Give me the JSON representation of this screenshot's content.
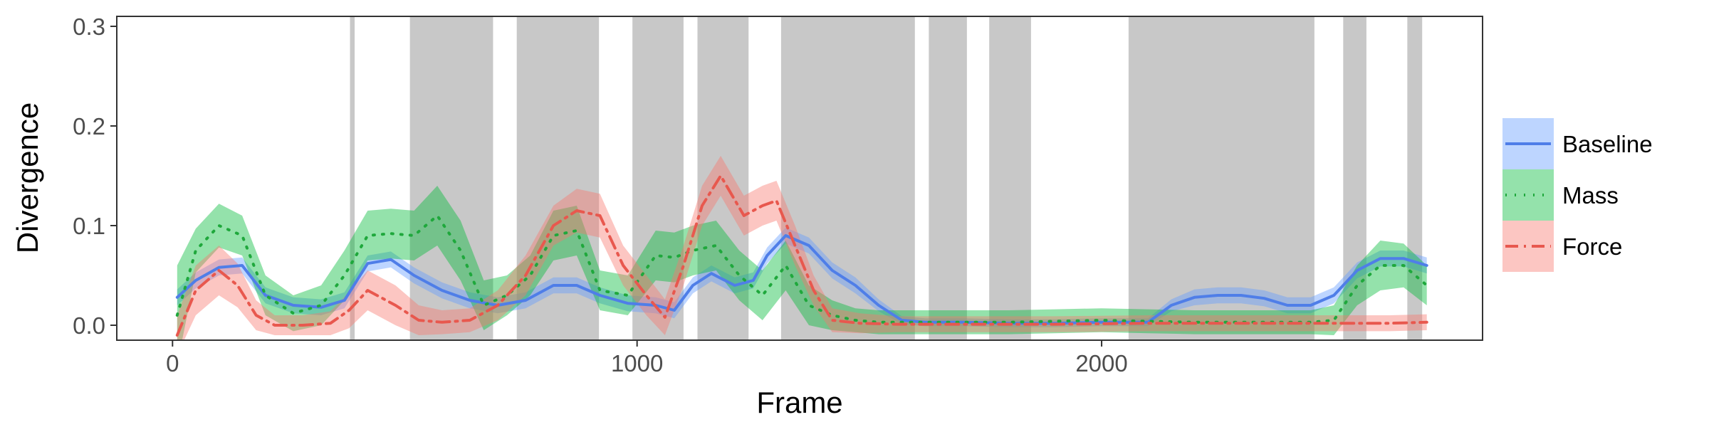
{
  "chart_data": {
    "type": "line",
    "xlabel": "Frame",
    "ylabel": "Divergence",
    "xlim": [
      -120,
      2820
    ],
    "ylim": [
      -0.015,
      0.31
    ],
    "x_ticks": [
      0,
      1000,
      2000
    ],
    "x_tick_labels": [
      "0",
      "1000",
      "2000"
    ],
    "y_ticks": [
      0.0,
      0.1,
      0.2,
      0.3
    ],
    "y_tick_labels": [
      "0.0",
      "0.1",
      "0.2",
      "0.3"
    ],
    "grid": false,
    "legend_position": "right",
    "shaded_intervals": [
      [
        382,
        392
      ],
      [
        511,
        690
      ],
      [
        741,
        918
      ],
      [
        990,
        1100
      ],
      [
        1130,
        1240
      ],
      [
        1310,
        1598
      ],
      [
        1628,
        1710
      ],
      [
        1758,
        1848
      ],
      [
        2058,
        2458
      ],
      [
        2520,
        2570
      ],
      [
        2658,
        2690
      ]
    ],
    "series": [
      {
        "name": "Baseline",
        "color": "#619CFF",
        "line_color": "#4f7ee8",
        "dash": "solid",
        "x": [
          10,
          50,
          100,
          150,
          200,
          260,
          320,
          370,
          420,
          470,
          520,
          580,
          640,
          700,
          760,
          820,
          870,
          920,
          980,
          1040,
          1080,
          1120,
          1160,
          1210,
          1250,
          1280,
          1320,
          1370,
          1420,
          1470,
          1520,
          1570,
          1620,
          1700,
          1800,
          1900,
          2000,
          2100,
          2150,
          2200,
          2250,
          2300,
          2350,
          2400,
          2450,
          2500,
          2550,
          2600,
          2650,
          2700
        ],
        "y": [
          0.028,
          0.045,
          0.058,
          0.06,
          0.03,
          0.02,
          0.018,
          0.025,
          0.062,
          0.066,
          0.05,
          0.035,
          0.025,
          0.02,
          0.025,
          0.04,
          0.04,
          0.03,
          0.022,
          0.02,
          0.015,
          0.04,
          0.052,
          0.04,
          0.045,
          0.07,
          0.09,
          0.08,
          0.055,
          0.04,
          0.02,
          0.005,
          0.003,
          0.003,
          0.002,
          0.002,
          0.003,
          0.003,
          0.02,
          0.028,
          0.03,
          0.03,
          0.027,
          0.02,
          0.02,
          0.03,
          0.055,
          0.067,
          0.067,
          0.06
        ],
        "band": [
          0.008,
          0.008,
          0.008,
          0.008,
          0.008,
          0.008,
          0.008,
          0.008,
          0.008,
          0.008,
          0.008,
          0.008,
          0.008,
          0.008,
          0.008,
          0.008,
          0.008,
          0.008,
          0.008,
          0.008,
          0.008,
          0.008,
          0.008,
          0.008,
          0.008,
          0.008,
          0.008,
          0.008,
          0.008,
          0.008,
          0.006,
          0.004,
          0.004,
          0.004,
          0.004,
          0.004,
          0.004,
          0.004,
          0.006,
          0.008,
          0.008,
          0.008,
          0.008,
          0.008,
          0.008,
          0.008,
          0.008,
          0.008,
          0.008,
          0.008
        ]
      },
      {
        "name": "Mass",
        "color": "#00BA38",
        "line_color": "#1fa83c",
        "dash": "dotted",
        "x": [
          10,
          50,
          100,
          150,
          200,
          260,
          320,
          370,
          420,
          470,
          520,
          570,
          620,
          670,
          720,
          770,
          820,
          870,
          920,
          980,
          1040,
          1080,
          1120,
          1170,
          1220,
          1270,
          1320,
          1370,
          1420,
          1470,
          1520,
          1600,
          1700,
          1800,
          1900,
          2000,
          2100,
          2200,
          2300,
          2400,
          2450,
          2500,
          2550,
          2600,
          2650,
          2700
        ],
        "y": [
          0.01,
          0.075,
          0.1,
          0.09,
          0.03,
          0.012,
          0.02,
          0.05,
          0.09,
          0.092,
          0.09,
          0.11,
          0.075,
          0.02,
          0.03,
          0.05,
          0.09,
          0.095,
          0.035,
          0.03,
          0.07,
          0.068,
          0.075,
          0.08,
          0.05,
          0.03,
          0.06,
          0.02,
          0.01,
          0.005,
          0.003,
          0.003,
          0.003,
          0.003,
          0.004,
          0.005,
          0.004,
          0.003,
          0.003,
          0.003,
          0.003,
          0.005,
          0.04,
          0.06,
          0.06,
          0.04
        ],
        "band": [
          0.05,
          0.022,
          0.022,
          0.02,
          0.02,
          0.018,
          0.02,
          0.025,
          0.025,
          0.025,
          0.025,
          0.03,
          0.03,
          0.025,
          0.02,
          0.02,
          0.025,
          0.025,
          0.02,
          0.02,
          0.025,
          0.025,
          0.025,
          0.025,
          0.025,
          0.025,
          0.025,
          0.02,
          0.015,
          0.012,
          0.012,
          0.012,
          0.012,
          0.012,
          0.012,
          0.012,
          0.012,
          0.012,
          0.012,
          0.012,
          0.012,
          0.015,
          0.02,
          0.025,
          0.022,
          0.02
        ]
      },
      {
        "name": "Force",
        "color": "#F8766D",
        "line_color": "#e8584e",
        "dash": "dashdot",
        "x": [
          10,
          50,
          100,
          140,
          180,
          220,
          280,
          340,
          380,
          420,
          480,
          530,
          580,
          640,
          700,
          760,
          820,
          870,
          920,
          970,
          1020,
          1060,
          1100,
          1140,
          1180,
          1230,
          1270,
          1300,
          1340,
          1380,
          1420,
          1480,
          1560,
          1700,
          1900,
          2100,
          2300,
          2450,
          2550,
          2620,
          2700
        ],
        "y": [
          -0.01,
          0.035,
          0.055,
          0.04,
          0.01,
          0.0,
          0.0,
          0.002,
          0.015,
          0.035,
          0.02,
          0.005,
          0.003,
          0.005,
          0.02,
          0.05,
          0.1,
          0.115,
          0.11,
          0.06,
          0.03,
          0.008,
          0.06,
          0.12,
          0.15,
          0.11,
          0.12,
          0.125,
          0.08,
          0.035,
          0.005,
          0.002,
          0.001,
          0.001,
          0.001,
          0.002,
          0.002,
          0.002,
          0.002,
          0.002,
          0.003
        ],
        "band": [
          0.02,
          0.025,
          0.025,
          0.022,
          0.015,
          0.01,
          0.01,
          0.012,
          0.018,
          0.02,
          0.02,
          0.015,
          0.012,
          0.012,
          0.015,
          0.02,
          0.02,
          0.022,
          0.022,
          0.02,
          0.02,
          0.018,
          0.02,
          0.02,
          0.02,
          0.02,
          0.02,
          0.02,
          0.02,
          0.015,
          0.012,
          0.01,
          0.008,
          0.008,
          0.008,
          0.008,
          0.008,
          0.008,
          0.008,
          0.008,
          0.008
        ]
      }
    ]
  }
}
